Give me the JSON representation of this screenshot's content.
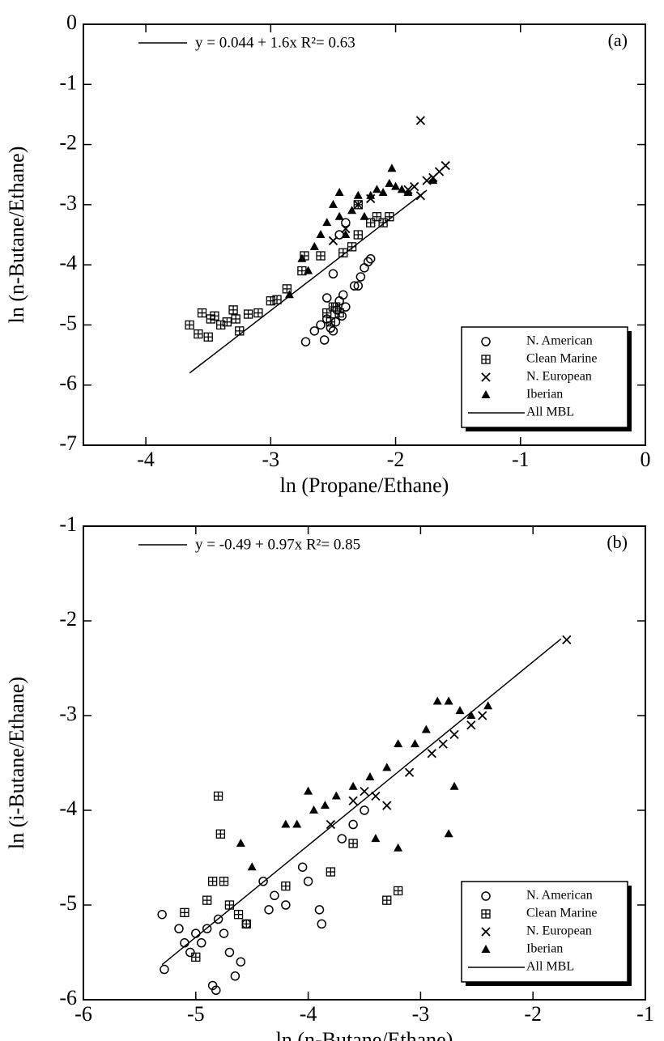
{
  "chart_data": [
    {
      "type": "scatter",
      "panel_label": "(a)",
      "annotation": "y = 0.044 + 1.6x R²= 0.63",
      "x_label": "ln (Propane/Ethane)",
      "y_label": "ln (n-Butane/Ethane)",
      "xlim": [
        -4.5,
        0
      ],
      "ylim": [
        -7,
        0
      ],
      "xticks": [
        -4,
        -3,
        -2,
        -1,
        0
      ],
      "yticks": [
        -7,
        -6,
        -5,
        -4,
        -3,
        -2,
        -1,
        0
      ],
      "legend": "lower right",
      "series": [
        {
          "name": "N. American",
          "marker": "circle",
          "color": "#000000",
          "x": [
            -2.72,
            -2.65,
            -2.6,
            -2.57,
            -2.55,
            -2.52,
            -2.5,
            -2.48,
            -2.47,
            -2.45,
            -2.43,
            -2.42,
            -2.4,
            -2.55,
            -2.5,
            -2.33,
            -2.3,
            -2.28,
            -2.25,
            -2.22,
            -2.2,
            -2.45,
            -2.4
          ],
          "values": [
            -5.28,
            -5.1,
            -5.0,
            -5.25,
            -4.9,
            -5.05,
            -5.1,
            -4.95,
            -4.75,
            -4.6,
            -4.85,
            -4.5,
            -4.7,
            -4.55,
            -4.15,
            -4.35,
            -4.35,
            -4.2,
            -4.05,
            -3.95,
            -3.9,
            -3.5,
            -3.3
          ]
        },
        {
          "name": "Clean Marine",
          "marker": "boxplus",
          "color": "#000000",
          "x": [
            -3.65,
            -3.58,
            -3.55,
            -3.5,
            -3.48,
            -3.45,
            -3.4,
            -3.35,
            -3.3,
            -3.28,
            -3.25,
            -3.18,
            -3.1,
            -3.0,
            -2.95,
            -2.87,
            -2.75,
            -2.73,
            -2.6,
            -2.55,
            -2.52,
            -2.5,
            -2.48,
            -2.45,
            -2.42,
            -2.35,
            -2.3,
            -2.2,
            -2.15,
            -2.1,
            -2.05,
            -2.3
          ],
          "values": [
            -5.0,
            -5.15,
            -4.8,
            -5.2,
            -4.9,
            -4.85,
            -5.0,
            -4.95,
            -4.75,
            -4.9,
            -5.1,
            -4.82,
            -4.8,
            -4.6,
            -4.58,
            -4.4,
            -4.1,
            -3.85,
            -3.85,
            -4.8,
            -4.95,
            -4.7,
            -4.7,
            -4.8,
            -3.8,
            -3.7,
            -3.5,
            -3.3,
            -3.2,
            -3.3,
            -3.2,
            -3.0
          ]
        },
        {
          "name": "N. European",
          "marker": "cross",
          "color": "#000000",
          "x": [
            -2.5,
            -2.4,
            -2.3,
            -2.2,
            -1.9,
            -1.85,
            -1.8,
            -1.8,
            -1.75,
            -1.7,
            -1.65,
            -1.6
          ],
          "values": [
            -3.6,
            -3.4,
            -3.0,
            -2.9,
            -2.75,
            -2.7,
            -2.85,
            -1.6,
            -2.6,
            -2.55,
            -2.45,
            -2.35
          ]
        },
        {
          "name": "Iberian",
          "marker": "triangle",
          "color": "#000000",
          "x": [
            -2.7,
            -2.65,
            -2.6,
            -2.55,
            -2.5,
            -2.45,
            -2.45,
            -2.4,
            -2.35,
            -2.3,
            -2.25,
            -2.2,
            -2.15,
            -2.1,
            -2.05,
            -2.03,
            -2.0,
            -1.95,
            -1.9,
            -1.7,
            -2.85,
            -2.75
          ],
          "values": [
            -4.1,
            -3.7,
            -3.5,
            -3.3,
            -3.0,
            -3.2,
            -2.8,
            -3.5,
            -3.1,
            -2.85,
            -3.2,
            -2.85,
            -2.75,
            -2.8,
            -2.65,
            -2.4,
            -2.7,
            -2.75,
            -2.8,
            -2.6,
            -4.5,
            -3.9
          ]
        },
        {
          "name": "All MBL",
          "marker": "line",
          "color": "#000000",
          "x": [
            -3.65,
            -1.75
          ],
          "values": [
            -5.8,
            -2.76
          ]
        }
      ]
    },
    {
      "type": "scatter",
      "panel_label": "(b)",
      "annotation": "y = -0.49 + 0.97x R²= 0.85",
      "x_label": "ln (n-Butane/Ethane)",
      "y_label": "ln (i-Butane/Ethane)",
      "xlim": [
        -6,
        -1
      ],
      "ylim": [
        -6,
        -1
      ],
      "xticks": [
        -6,
        -5,
        -4,
        -3,
        -2,
        -1
      ],
      "yticks": [
        -6,
        -5,
        -4,
        -3,
        -2,
        -1
      ],
      "legend": "lower right",
      "series": [
        {
          "name": "N. American",
          "marker": "circle",
          "color": "#000000",
          "x": [
            -5.3,
            -5.28,
            -5.15,
            -5.1,
            -5.05,
            -5.0,
            -4.95,
            -4.9,
            -4.85,
            -4.82,
            -4.8,
            -4.75,
            -4.7,
            -4.65,
            -4.6,
            -4.55,
            -4.4,
            -4.35,
            -4.3,
            -4.2,
            -4.05,
            -4.0,
            -3.9,
            -3.88,
            -3.7,
            -3.6,
            -3.5
          ],
          "values": [
            -5.1,
            -5.68,
            -5.25,
            -5.4,
            -5.5,
            -5.3,
            -5.4,
            -5.25,
            -5.85,
            -5.9,
            -5.15,
            -5.3,
            -5.5,
            -5.75,
            -5.6,
            -5.2,
            -4.75,
            -5.05,
            -4.9,
            -5.0,
            -4.6,
            -4.75,
            -5.05,
            -5.2,
            -4.3,
            -4.15,
            -4.0
          ]
        },
        {
          "name": "Clean Marine",
          "marker": "boxplus",
          "color": "#000000",
          "x": [
            -5.1,
            -5.0,
            -4.9,
            -4.85,
            -4.8,
            -4.78,
            -4.75,
            -4.7,
            -4.62,
            -4.55,
            -4.2,
            -3.8,
            -3.3,
            -3.2,
            -3.6
          ],
          "values": [
            -5.08,
            -5.55,
            -4.95,
            -4.75,
            -3.85,
            -4.25,
            -4.75,
            -5.0,
            -5.1,
            -5.2,
            -4.8,
            -4.65,
            -4.95,
            -4.85,
            -4.35
          ]
        },
        {
          "name": "N. European",
          "marker": "cross",
          "color": "#000000",
          "x": [
            -3.8,
            -3.6,
            -3.5,
            -3.3,
            -3.1,
            -2.9,
            -2.8,
            -2.7,
            -2.55,
            -2.45,
            -1.7,
            -3.4
          ],
          "values": [
            -4.15,
            -3.9,
            -3.8,
            -3.95,
            -3.6,
            -3.4,
            -3.3,
            -3.2,
            -3.1,
            -3.0,
            -2.2,
            -3.85
          ]
        },
        {
          "name": "Iberian",
          "marker": "triangle",
          "color": "#000000",
          "x": [
            -4.6,
            -4.5,
            -4.2,
            -4.1,
            -3.95,
            -3.85,
            -3.75,
            -3.6,
            -3.45,
            -3.3,
            -3.2,
            -3.05,
            -2.95,
            -2.85,
            -2.75,
            -2.65,
            -2.55,
            -2.4,
            -2.7,
            -2.75,
            -3.2,
            -3.4,
            -4.0
          ],
          "values": [
            -4.35,
            -4.6,
            -4.15,
            -4.15,
            -4.0,
            -3.95,
            -3.85,
            -3.75,
            -3.65,
            -3.55,
            -3.3,
            -3.3,
            -3.15,
            -2.85,
            -2.85,
            -2.95,
            -3.0,
            -2.9,
            -3.75,
            -4.25,
            -4.4,
            -4.3,
            -3.8
          ]
        },
        {
          "name": "All MBL",
          "marker": "line",
          "color": "#000000",
          "x": [
            -5.3,
            -1.75
          ],
          "values": [
            -5.63,
            -2.19
          ]
        }
      ]
    }
  ]
}
